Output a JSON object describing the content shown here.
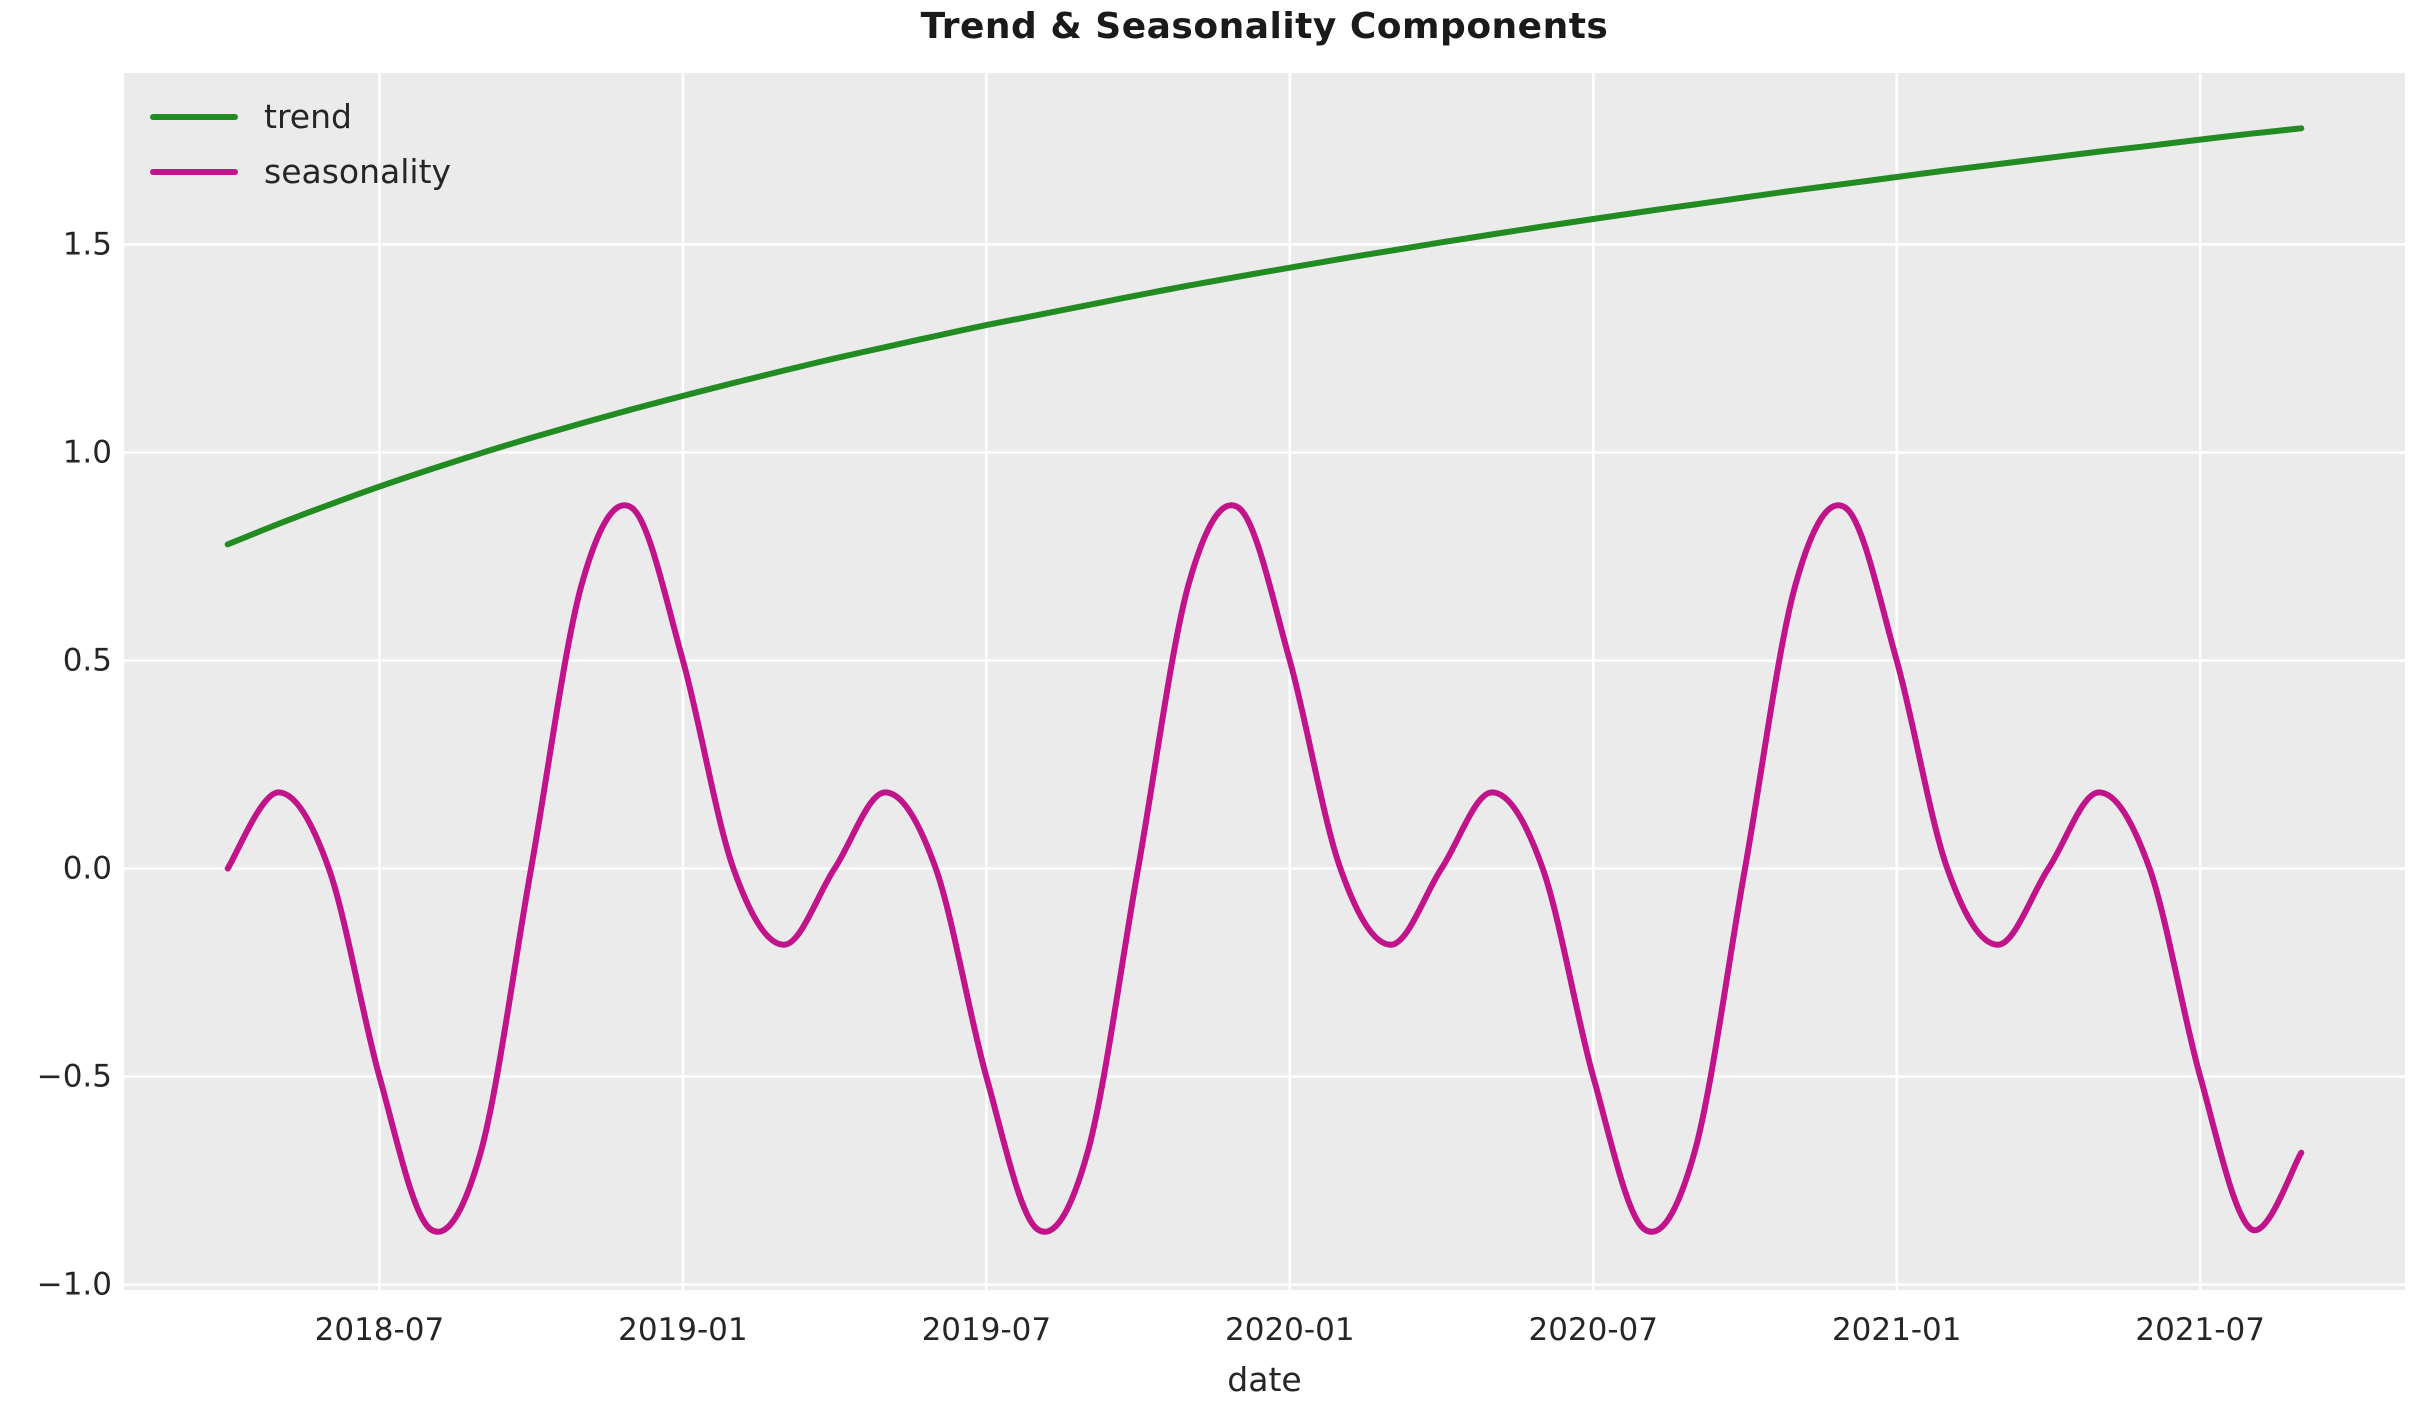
{
  "figure": {
    "title": "Trend & Seasonality Components",
    "xlabel": "date"
  },
  "chart_data": {
    "type": "line",
    "title": "Trend & Seasonality Components",
    "xlabel": "date",
    "ylabel": "",
    "grid": true,
    "legend_position": "upper left",
    "plot_bg": "#EBEBEB",
    "grid_color": "#FFFFFF",
    "text_color": "#262626",
    "x": [
      "2018-04",
      "2018-05",
      "2018-06",
      "2018-07",
      "2018-08",
      "2018-09",
      "2018-10",
      "2018-11",
      "2018-12",
      "2019-01",
      "2019-02",
      "2019-03",
      "2019-04",
      "2019-05",
      "2019-06",
      "2019-07",
      "2019-08",
      "2019-09",
      "2019-10",
      "2019-11",
      "2019-12",
      "2020-01",
      "2020-02",
      "2020-03",
      "2020-04",
      "2020-05",
      "2020-06",
      "2020-07",
      "2020-08",
      "2020-09",
      "2020-10",
      "2020-11",
      "2020-12",
      "2021-01",
      "2021-02",
      "2021-03",
      "2021-04",
      "2021-05",
      "2021-06",
      "2021-07",
      "2021-08",
      "2021-09"
    ],
    "series": [
      {
        "name": "trend",
        "color": "#228B22",
        "values": [
          0.779,
          0.828,
          0.874,
          0.918,
          0.959,
          0.998,
          1.035,
          1.07,
          1.104,
          1.136,
          1.167,
          1.197,
          1.226,
          1.253,
          1.28,
          1.306,
          1.33,
          1.354,
          1.378,
          1.401,
          1.423,
          1.444,
          1.465,
          1.485,
          1.505,
          1.524,
          1.543,
          1.561,
          1.579,
          1.596,
          1.613,
          1.63,
          1.646,
          1.662,
          1.678,
          1.693,
          1.708,
          1.723,
          1.737,
          1.752,
          1.766,
          1.779
        ]
      },
      {
        "name": "seasonality",
        "color": "#C1138A",
        "values": [
          0.0,
          0.183,
          0.0,
          -0.5,
          -0.866,
          -0.683,
          0.0,
          0.683,
          0.866,
          0.5,
          0.0,
          -0.183,
          0.0,
          0.183,
          0.0,
          -0.5,
          -0.866,
          -0.683,
          0.0,
          0.683,
          0.866,
          0.5,
          0.0,
          -0.183,
          0.0,
          0.183,
          0.0,
          -0.5,
          -0.866,
          -0.683,
          0.0,
          0.683,
          0.866,
          0.5,
          0.0,
          -0.183,
          0.0,
          0.183,
          0.0,
          -0.5,
          -0.866,
          -0.683
        ]
      }
    ],
    "x_ticks": [
      {
        "label": "2018-07",
        "index": 3
      },
      {
        "label": "2019-01",
        "index": 9
      },
      {
        "label": "2019-07",
        "index": 15
      },
      {
        "label": "2020-01",
        "index": 21
      },
      {
        "label": "2020-07",
        "index": 27
      },
      {
        "label": "2021-01",
        "index": 33
      },
      {
        "label": "2021-07",
        "index": 39
      }
    ],
    "y_ticks": [
      {
        "label": "−1.0",
        "value": -1.0
      },
      {
        "label": "−0.5",
        "value": -0.5
      },
      {
        "label": "0.0",
        "value": 0.0
      },
      {
        "label": "0.5",
        "value": 0.5
      },
      {
        "label": "1.0",
        "value": 1.0
      },
      {
        "label": "1.5",
        "value": 1.5
      }
    ],
    "xlim_index": [
      -2.05,
      43.05
    ],
    "ylim": [
      -1.013,
      1.912
    ]
  }
}
